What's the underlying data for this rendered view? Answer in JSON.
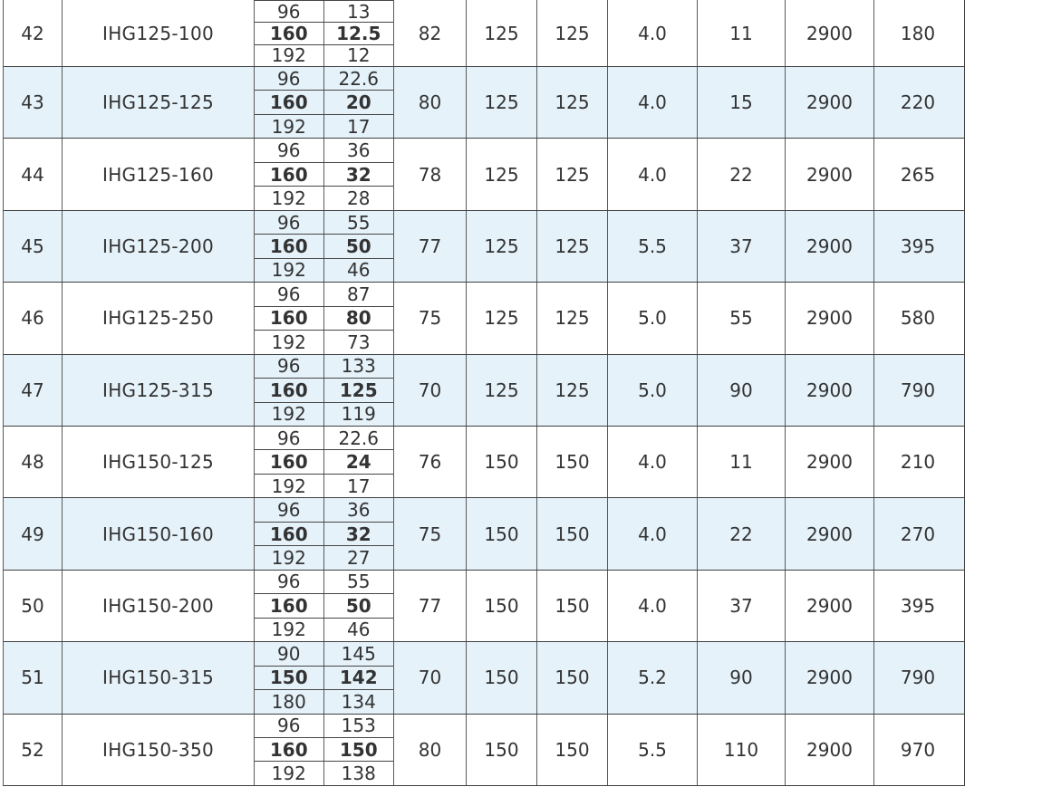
{
  "table": {
    "description_colors": {
      "zebra_row_background": "#e5f2fa",
      "grid_line": "#3f3f3f",
      "text": "#333333"
    },
    "rows": [
      {
        "no": "42",
        "model": "IHG125-100",
        "flow": [
          "96",
          "160",
          "192"
        ],
        "head": [
          "13",
          "12.5",
          "12"
        ],
        "efficiency": "82",
        "inlet": "125",
        "outlet": "125",
        "npsh": "4.0",
        "power": "11",
        "speed": "2900",
        "weight": "180"
      },
      {
        "no": "43",
        "model": "IHG125-125",
        "flow": [
          "96",
          "160",
          "192"
        ],
        "head": [
          "22.6",
          "20",
          "17"
        ],
        "efficiency": "80",
        "inlet": "125",
        "outlet": "125",
        "npsh": "4.0",
        "power": "15",
        "speed": "2900",
        "weight": "220"
      },
      {
        "no": "44",
        "model": "IHG125-160",
        "flow": [
          "96",
          "160",
          "192"
        ],
        "head": [
          "36",
          "32",
          "28"
        ],
        "efficiency": "78",
        "inlet": "125",
        "outlet": "125",
        "npsh": "4.0",
        "power": "22",
        "speed": "2900",
        "weight": "265"
      },
      {
        "no": "45",
        "model": "IHG125-200",
        "flow": [
          "96",
          "160",
          "192"
        ],
        "head": [
          "55",
          "50",
          "46"
        ],
        "efficiency": "77",
        "inlet": "125",
        "outlet": "125",
        "npsh": "5.5",
        "power": "37",
        "speed": "2900",
        "weight": "395"
      },
      {
        "no": "46",
        "model": "IHG125-250",
        "flow": [
          "96",
          "160",
          "192"
        ],
        "head": [
          "87",
          "80",
          "73"
        ],
        "efficiency": "75",
        "inlet": "125",
        "outlet": "125",
        "npsh": "5.0",
        "power": "55",
        "speed": "2900",
        "weight": "580"
      },
      {
        "no": "47",
        "model": "IHG125-315",
        "flow": [
          "96",
          "160",
          "192"
        ],
        "head": [
          "133",
          "125",
          "119"
        ],
        "efficiency": "70",
        "inlet": "125",
        "outlet": "125",
        "npsh": "5.0",
        "power": "90",
        "speed": "2900",
        "weight": "790"
      },
      {
        "no": "48",
        "model": "IHG150-125",
        "flow": [
          "96",
          "160",
          "192"
        ],
        "head": [
          "22.6",
          "24",
          "17"
        ],
        "efficiency": "76",
        "inlet": "150",
        "outlet": "150",
        "npsh": "4.0",
        "power": "11",
        "speed": "2900",
        "weight": "210"
      },
      {
        "no": "49",
        "model": "IHG150-160",
        "flow": [
          "96",
          "160",
          "192"
        ],
        "head": [
          "36",
          "32",
          "27"
        ],
        "efficiency": "75",
        "inlet": "150",
        "outlet": "150",
        "npsh": "4.0",
        "power": "22",
        "speed": "2900",
        "weight": "270"
      },
      {
        "no": "50",
        "model": "IHG150-200",
        "flow": [
          "96",
          "160",
          "192"
        ],
        "head": [
          "55",
          "50",
          "46"
        ],
        "efficiency": "77",
        "inlet": "150",
        "outlet": "150",
        "npsh": "4.0",
        "power": "37",
        "speed": "2900",
        "weight": "395"
      },
      {
        "no": "51",
        "model": "IHG150-315",
        "flow": [
          "90",
          "150",
          "180"
        ],
        "head": [
          "145",
          "142",
          "134"
        ],
        "efficiency": "70",
        "inlet": "150",
        "outlet": "150",
        "npsh": "5.2",
        "power": "90",
        "speed": "2900",
        "weight": "790"
      },
      {
        "no": "52",
        "model": "IHG150-350",
        "flow": [
          "96",
          "160",
          "192"
        ],
        "head": [
          "153",
          "150",
          "138"
        ],
        "efficiency": "80",
        "inlet": "150",
        "outlet": "150",
        "npsh": "5.5",
        "power": "110",
        "speed": "2900",
        "weight": "970"
      }
    ]
  }
}
